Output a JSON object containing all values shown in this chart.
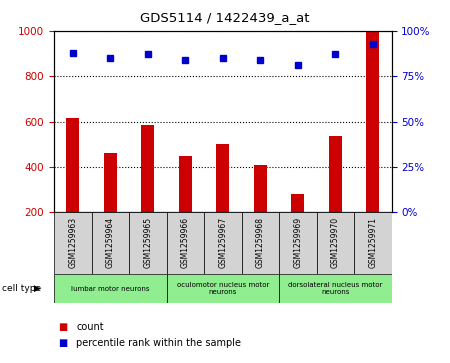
{
  "title": "GDS5114 / 1422439_a_at",
  "samples": [
    "GSM1259963",
    "GSM1259964",
    "GSM1259965",
    "GSM1259966",
    "GSM1259967",
    "GSM1259968",
    "GSM1259969",
    "GSM1259970",
    "GSM1259971"
  ],
  "counts": [
    615,
    462,
    585,
    450,
    500,
    408,
    280,
    535,
    1000
  ],
  "percentile_ranks": [
    88,
    85,
    87,
    84,
    85,
    84,
    81,
    87,
    93
  ],
  "ylim_left": [
    200,
    1000
  ],
  "ylim_right": [
    0,
    100
  ],
  "yticks_left": [
    200,
    400,
    600,
    800,
    1000
  ],
  "yticks_right": [
    0,
    25,
    50,
    75,
    100
  ],
  "bar_color": "#cc0000",
  "dot_color": "#0000cc",
  "grid_color": "#000000",
  "bg_color": "#ffffff",
  "plot_bg": "#ffffff",
  "tick_label_color_left": "#cc0000",
  "tick_label_color_right": "#0000cc",
  "cell_type_groups": [
    {
      "label": "lumbar motor neurons",
      "start": 0,
      "end": 3
    },
    {
      "label": "oculomotor nucleus motor\nneurons",
      "start": 3,
      "end": 6
    },
    {
      "label": "dorsolateral nucleus motor\nneurons",
      "start": 6,
      "end": 9
    }
  ],
  "cell_type_bg": "#90ee90",
  "sample_bg": "#d3d3d3",
  "legend_count_color": "#cc0000",
  "legend_pct_color": "#0000cc",
  "legend_count_label": "count",
  "legend_pct_label": "percentile rank within the sample",
  "bar_width": 0.35
}
